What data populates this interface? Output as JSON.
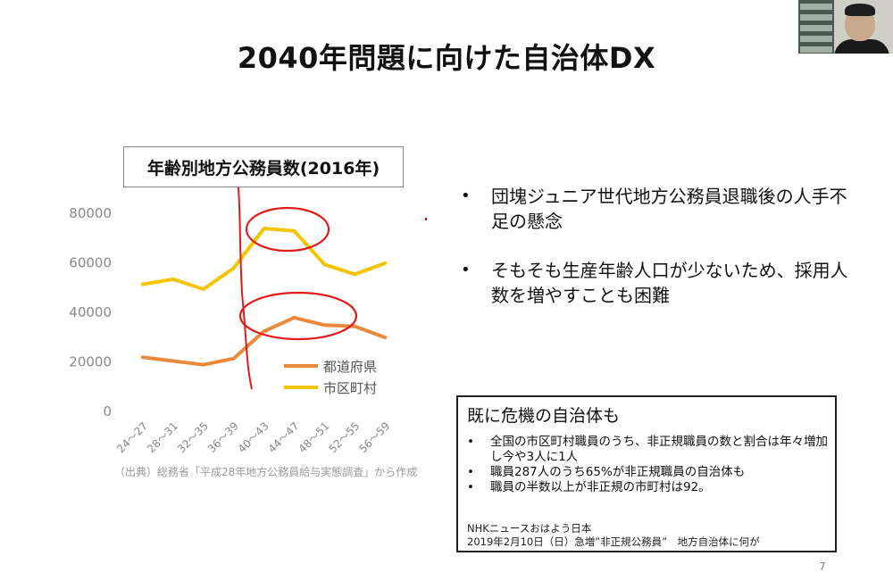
{
  "page": {
    "title": "2040年問題に向けた自治体DX",
    "page_number": "7"
  },
  "chart_title": "年齢別地方公務員数(2016年)",
  "source_note": "（出典）総務省「平成28年地方公務員給与実態調査」から作成",
  "bullets": [
    "団塊ジュニア世代地方公務員退職後の人手不足の懸念",
    "そもそも生産年齢人口が少ないため、採用人数を増やすことも困難"
  ],
  "info_box": {
    "title": "既に危機の自治体も",
    "items": [
      "全国の市区町村職員のうち、非正規職員の数と割合は年々増加し今や3人に1人",
      "職員287人のうち65%が非正規職員の自治体も",
      "職員の半数以上が非正規の市町村は92。"
    ],
    "credit_line1": "NHKニュースおはよう日本",
    "credit_line2": "2019年2月10日（日）急増”非正規公務員”　地方自治体に何が"
  },
  "webcam": {
    "label": "presenter-video"
  },
  "colors": {
    "prefecture": "#E8893C",
    "municipality": "#F5C400",
    "annotation": "#E11A1A",
    "axis_text": "#888888"
  },
  "chart_data": {
    "type": "line",
    "title": "年齢別地方公務員数(2016年)",
    "categories": [
      "24〜27",
      "28〜31",
      "32〜35",
      "36〜39",
      "40〜43",
      "44〜47",
      "48〜51",
      "52〜55",
      "56〜59"
    ],
    "y_ticks": [
      "0",
      "20000",
      "40000",
      "60000",
      "80000"
    ],
    "ylim": [
      0,
      80000
    ],
    "grid": false,
    "legend_position": "right",
    "series": [
      {
        "name": "都道府県",
        "color": "#E8893C",
        "values": [
          21500,
          20000,
          18500,
          21000,
          32000,
          37500,
          34500,
          34000,
          29500
        ]
      },
      {
        "name": "市区町村",
        "color": "#F5C400",
        "values": [
          51000,
          53000,
          49000,
          57500,
          73500,
          72500,
          59000,
          55000,
          59500
        ]
      }
    ]
  }
}
